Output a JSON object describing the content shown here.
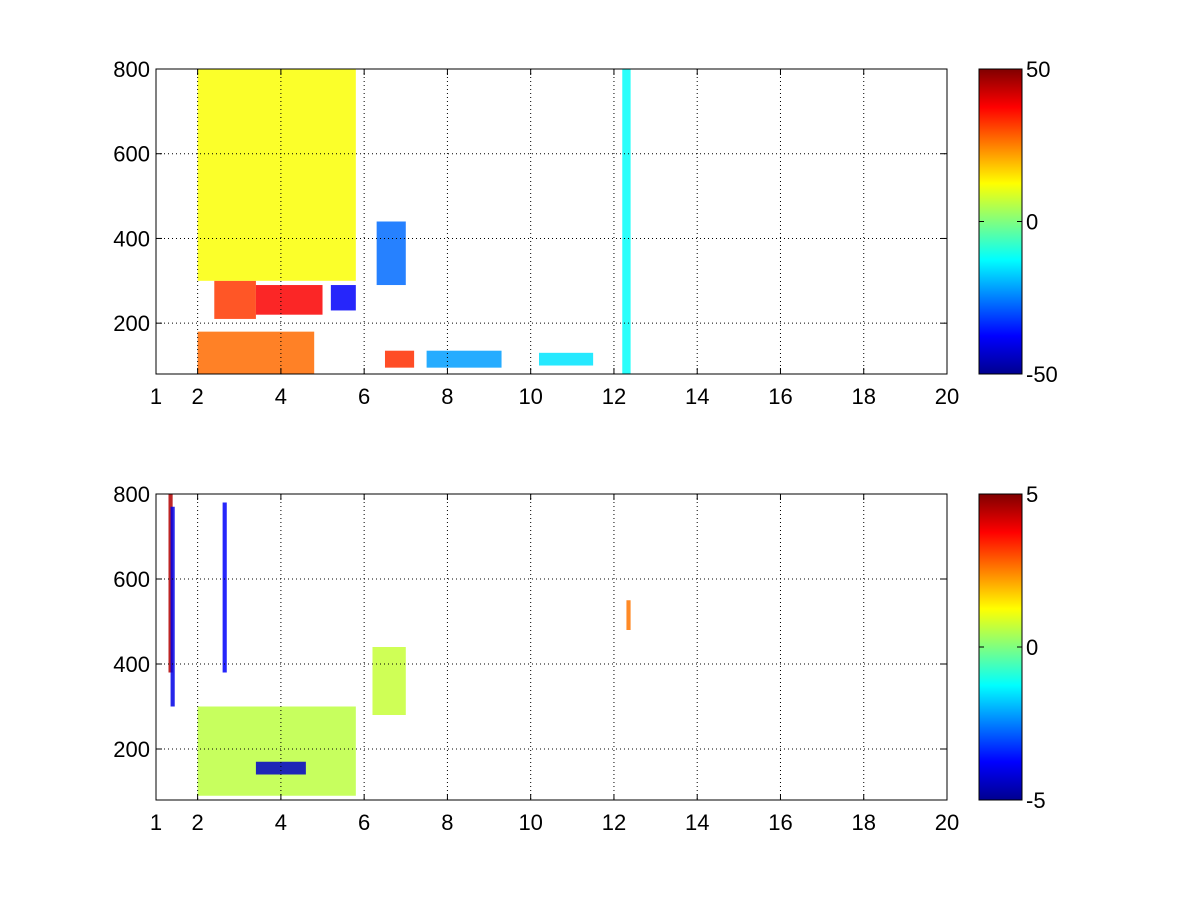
{
  "chart_data": [
    {
      "type": "heatmap",
      "title": "",
      "xlabel": "",
      "ylabel": "",
      "xlim": [
        1,
        20
      ],
      "ylim": [
        80,
        800
      ],
      "x_ticks": [
        "1",
        "2",
        "4",
        "6",
        "8",
        "10",
        "12",
        "14",
        "16",
        "18",
        "20"
      ],
      "y_ticks": [
        "200",
        "400",
        "600",
        "800"
      ],
      "grid": true,
      "colormap": "jet",
      "clim": [
        -50,
        50
      ],
      "colorbar_ticks": [
        "50",
        "0",
        "-50"
      ],
      "regions": [
        {
          "x": [
            2.4,
            3.4
          ],
          "y": [
            210,
            300
          ],
          "value": 32
        },
        {
          "x": [
            3.4,
            5.0
          ],
          "y": [
            220,
            290
          ],
          "value": 38
        },
        {
          "x": [
            2.0,
            4.8
          ],
          "y": [
            80,
            180
          ],
          "value": 27
        },
        {
          "x": [
            5.2,
            5.8
          ],
          "y": [
            230,
            290
          ],
          "value": -38
        },
        {
          "x": [
            6.3,
            7.0
          ],
          "y": [
            290,
            440
          ],
          "value": -27
        },
        {
          "x": [
            6.5,
            7.2
          ],
          "y": [
            95,
            135
          ],
          "value": 33
        },
        {
          "x": [
            7.5,
            9.3
          ],
          "y": [
            95,
            135
          ],
          "value": -22
        },
        {
          "x": [
            10.2,
            11.5
          ],
          "y": [
            100,
            130
          ],
          "value": -15
        },
        {
          "x": [
            2.0,
            5.8
          ],
          "y": [
            300,
            800
          ],
          "value": 12
        },
        {
          "x": [
            12.2,
            12.4
          ],
          "y": [
            80,
            800
          ],
          "value": -12
        }
      ]
    },
    {
      "type": "heatmap",
      "title": "",
      "xlabel": "",
      "ylabel": "",
      "xlim": [
        1,
        20
      ],
      "ylim": [
        80,
        800
      ],
      "x_ticks": [
        "1",
        "2",
        "4",
        "6",
        "8",
        "10",
        "12",
        "14",
        "16",
        "18",
        "20"
      ],
      "y_ticks": [
        "200",
        "400",
        "600",
        "800"
      ],
      "grid": true,
      "colormap": "jet",
      "clim": [
        -5,
        5
      ],
      "colorbar_ticks": [
        "5",
        "0",
        "-5"
      ],
      "regions": [
        {
          "x": [
            2.0,
            5.8
          ],
          "y": [
            90,
            300
          ],
          "value": 0.6
        },
        {
          "x": [
            3.4,
            4.6
          ],
          "y": [
            140,
            170
          ],
          "value": -4.3
        },
        {
          "x": [
            1.3,
            1.4
          ],
          "y": [
            380,
            800
          ],
          "value": 4.5
        },
        {
          "x": [
            1.35,
            1.45
          ],
          "y": [
            300,
            770
          ],
          "value": -4
        },
        {
          "x": [
            2.6,
            2.7
          ],
          "y": [
            380,
            780
          ],
          "value": -3.8
        },
        {
          "x": [
            6.2,
            7.0
          ],
          "y": [
            280,
            440
          ],
          "value": 0.7
        },
        {
          "x": [
            12.3,
            12.4
          ],
          "y": [
            480,
            550
          ],
          "value": 2.6
        }
      ]
    }
  ]
}
